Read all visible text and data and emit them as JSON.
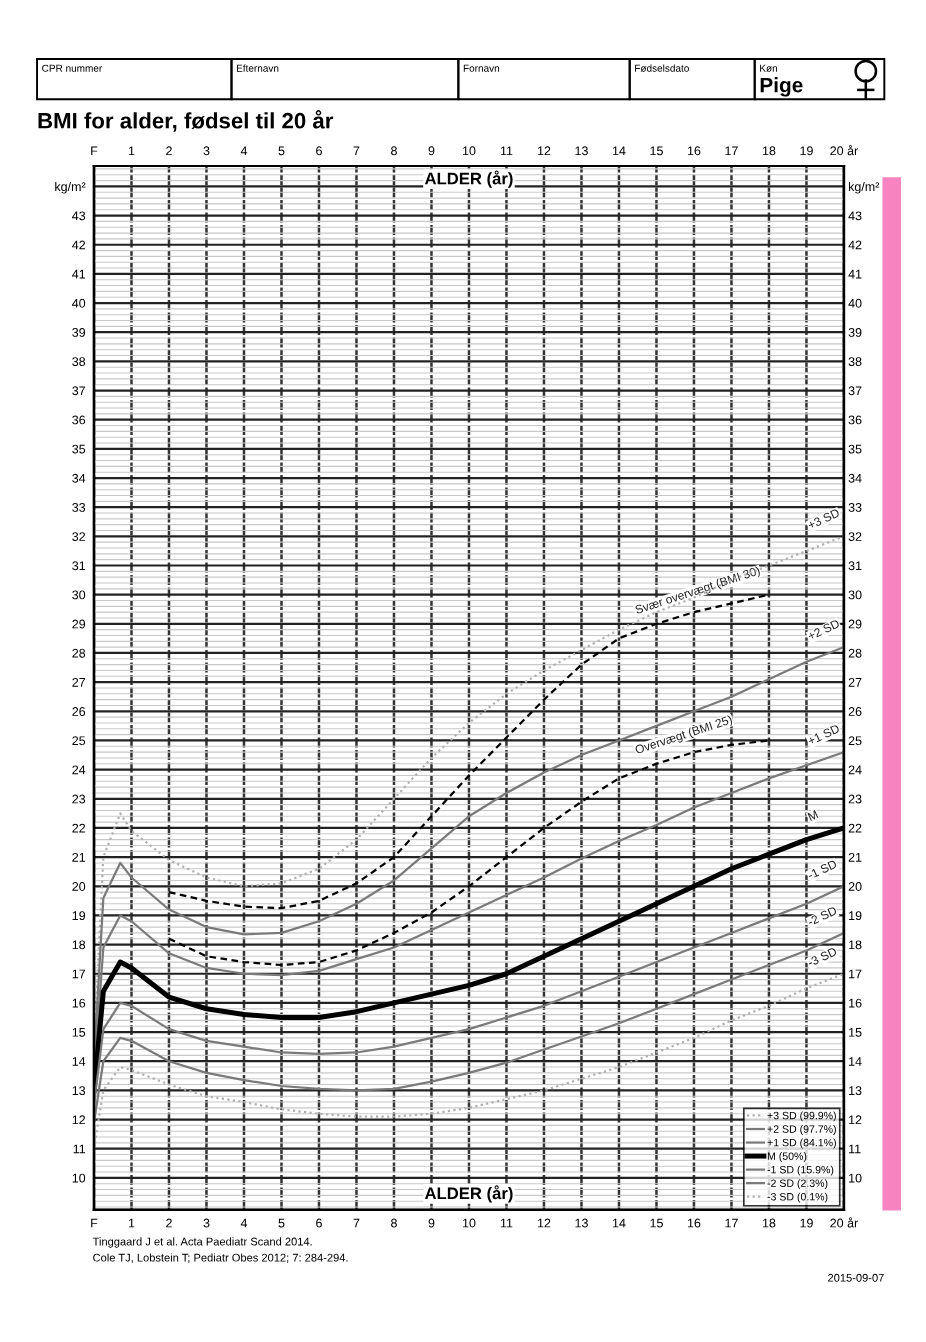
{
  "chart_data": {
    "type": "line",
    "title": "BMI for alder, fødsel til 20 år",
    "xlabel": "ALDER (år)",
    "xlim": [
      0,
      20
    ],
    "ylim": [
      8.9,
      44.7
    ],
    "xticks": [
      {
        "value": 0,
        "label": "F"
      },
      1,
      2,
      3,
      4,
      5,
      6,
      7,
      8,
      9,
      10,
      11,
      12,
      13,
      14,
      15,
      16,
      17,
      18,
      19,
      {
        "value": 20,
        "label": "20 år"
      }
    ],
    "x2lim": [
      0,
      20
    ],
    "x2ticks": [
      {
        "value": 0,
        "label": "F"
      },
      1,
      2,
      3,
      4,
      5,
      6,
      7,
      8,
      9,
      10,
      11,
      12,
      13,
      14,
      15,
      16,
      17,
      18,
      19,
      {
        "value": 20,
        "label": "20 år"
      }
    ],
    "yticks": [
      10,
      11,
      12,
      13,
      14,
      15,
      16,
      17,
      18,
      19,
      20,
      21,
      22,
      23,
      24,
      25,
      26,
      27,
      28,
      29,
      30,
      31,
      32,
      33,
      34,
      35,
      36,
      37,
      38,
      39,
      40,
      41,
      42,
      43,
      {
        "value": 44,
        "label": "kg/m²"
      }
    ],
    "y2lim": [
      8.9,
      44.7
    ],
    "y2ticks": [
      10,
      11,
      12,
      13,
      14,
      15,
      16,
      17,
      18,
      19,
      20,
      21,
      22,
      23,
      24,
      25,
      26,
      27,
      28,
      29,
      30,
      31,
      32,
      33,
      34,
      35,
      36,
      37,
      38,
      39,
      40,
      41,
      42,
      43,
      {
        "value": 44,
        "label": "kg/m²"
      }
    ],
    "grid": true,
    "legend": "bottom right",
    "marker": "none",
    "x": [
      0,
      0.25,
      0.7,
      1,
      2,
      3,
      4,
      5,
      6,
      7,
      8,
      9,
      10,
      11,
      12,
      13,
      14,
      15,
      16,
      17,
      18,
      19,
      20
    ],
    "series": [
      {
        "name": "+3 SD (99.9%)",
        "color": "#b0b0b0",
        "line_style": "dotted",
        "values": [
          14.6,
          21.0,
          22.5,
          21.9,
          20.9,
          20.3,
          20.0,
          20.1,
          20.6,
          21.6,
          23.0,
          24.4,
          25.6,
          26.6,
          27.4,
          28.1,
          28.8,
          29.4,
          29.9,
          30.5,
          31.0,
          31.5,
          32.0
        ]
      },
      {
        "name": "+2 SD (97.7%)",
        "color": "#7a7a7a",
        "line_style": "solid",
        "values": [
          14.0,
          19.6,
          20.8,
          20.3,
          19.2,
          18.6,
          18.35,
          18.4,
          18.8,
          19.4,
          20.2,
          21.3,
          22.4,
          23.2,
          23.9,
          24.5,
          25.0,
          25.5,
          26.0,
          26.5,
          27.1,
          27.7,
          28.2
        ]
      },
      {
        "name": "+1 SD (84.1%)",
        "color": "#7a7a7a",
        "line_style": "solid",
        "values": [
          13.5,
          17.9,
          19.0,
          18.8,
          17.7,
          17.2,
          17.0,
          16.95,
          17.1,
          17.5,
          17.9,
          18.5,
          19.1,
          19.7,
          20.3,
          20.95,
          21.55,
          22.1,
          22.7,
          23.2,
          23.7,
          24.15,
          24.6
        ]
      },
      {
        "name": "M (50%)",
        "color": "#000000",
        "line_style": "solid",
        "values": [
          13.0,
          16.4,
          17.4,
          17.2,
          16.2,
          15.8,
          15.6,
          15.5,
          15.5,
          15.7,
          16.0,
          16.3,
          16.6,
          17.0,
          17.6,
          18.2,
          18.8,
          19.4,
          20.0,
          20.6,
          21.1,
          21.6,
          22.0
        ]
      },
      {
        "name": "-1 SD (15.9%)",
        "color": "#7a7a7a",
        "line_style": "solid",
        "values": [
          12.5,
          15.1,
          16.0,
          15.9,
          15.1,
          14.7,
          14.5,
          14.3,
          14.25,
          14.3,
          14.5,
          14.8,
          15.1,
          15.5,
          15.9,
          16.4,
          16.9,
          17.4,
          17.9,
          18.4,
          18.9,
          19.4,
          20.0
        ]
      },
      {
        "name": "-2 SD (2.3%)",
        "color": "#7a7a7a",
        "line_style": "solid",
        "values": [
          11.9,
          14.0,
          14.8,
          14.7,
          14.0,
          13.6,
          13.35,
          13.15,
          13.05,
          13.0,
          13.05,
          13.3,
          13.6,
          13.95,
          14.4,
          14.85,
          15.3,
          15.8,
          16.3,
          16.8,
          17.3,
          17.8,
          18.4
        ]
      },
      {
        "name": "-3 SD (0.1%)",
        "color": "#b0b0b0",
        "line_style": "dotted",
        "values": [
          11.0,
          13.0,
          13.8,
          13.7,
          13.2,
          12.8,
          12.6,
          12.35,
          12.2,
          12.1,
          12.1,
          12.2,
          12.4,
          12.7,
          13.0,
          13.4,
          13.8,
          14.3,
          14.8,
          15.4,
          15.9,
          16.5,
          17.0
        ]
      },
      {
        "color": "#000000",
        "line_style": "dashed",
        "x": [
          2,
          3,
          4,
          5,
          6,
          7,
          8,
          9,
          10,
          11,
          12,
          13,
          14,
          15,
          16,
          17,
          18
        ],
        "values": [
          19.8,
          19.5,
          19.3,
          19.25,
          19.5,
          20.1,
          21.0,
          22.4,
          23.8,
          25.1,
          26.4,
          27.6,
          28.5,
          29.0,
          29.4,
          29.7,
          30.0
        ]
      },
      {
        "color": "#000000",
        "line_style": "dashed",
        "x": [
          2,
          3,
          4,
          5,
          6,
          7,
          8,
          9,
          10,
          11,
          12,
          13,
          14,
          15,
          16,
          17,
          18
        ],
        "values": [
          18.2,
          17.6,
          17.4,
          17.3,
          17.4,
          17.8,
          18.4,
          19.1,
          20.0,
          21.0,
          22.0,
          22.9,
          23.7,
          24.2,
          24.6,
          24.85,
          25.0
        ]
      }
    ],
    "annotations": [
      "CPR nummer",
      "Efternavn",
      "Fornavn",
      "Fødselsdato",
      "Køn",
      "Pige",
      "Tinggaard J et al. Acta Paediatr Scand 2014.",
      "Cole TJ, Lobstein T; Pediatr Obes 2012; 7: 284-294.",
      "2015-09-07",
      "Svær overvægt (BMI 30)",
      "Overvægt (BMI 25)",
      "+3 SD",
      "+2 SD",
      "+1 SD",
      "M",
      "-1 SD",
      "-2 SD",
      "-3 SD"
    ]
  }
}
